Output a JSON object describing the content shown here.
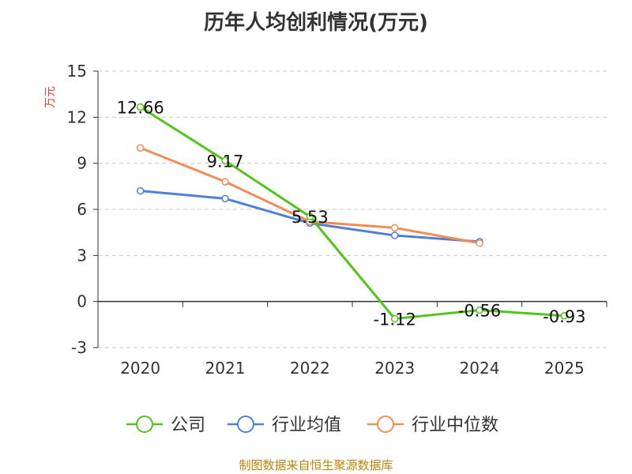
{
  "title": "历年人均创利情况(万元)",
  "footer": "制图数据来自恒生聚源数据库",
  "chart_data": {
    "type": "line",
    "title": "历年人均创利情况(万元)",
    "ylabel": "万元",
    "xlabel": "",
    "categories": [
      "2020",
      "2021",
      "2022",
      "2023",
      "2024",
      "2025"
    ],
    "ylim": [
      -3,
      15
    ],
    "yticks": [
      -3,
      0,
      3,
      6,
      9,
      12,
      15
    ],
    "grid": true,
    "legend_position": "bottom",
    "series": [
      {
        "name": "公司",
        "color": "#52c41a",
        "values": [
          12.66,
          9.17,
          5.53,
          -1.12,
          -0.56,
          -0.93
        ],
        "labels": [
          "12.66",
          "9.17",
          "5.53",
          "-1.12",
          "-0.56",
          "-0.93"
        ]
      },
      {
        "name": "行业均值",
        "color": "#4f7fdb",
        "values": [
          7.2,
          6.7,
          5.1,
          4.3,
          3.9,
          null
        ],
        "labels": null
      },
      {
        "name": "行业中位数",
        "color": "#f28c55",
        "values": [
          10.0,
          7.8,
          5.2,
          4.8,
          3.8,
          null
        ],
        "labels": null
      }
    ]
  }
}
